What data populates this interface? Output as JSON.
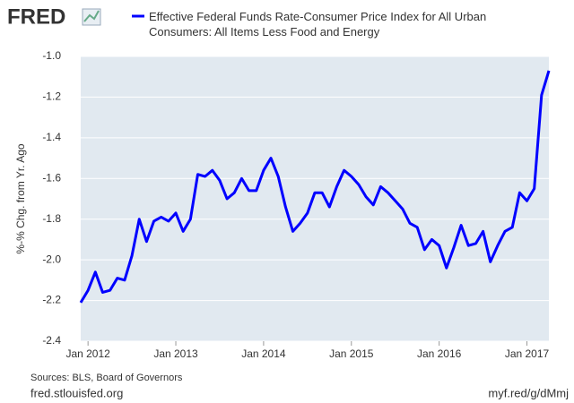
{
  "chart_data": {
    "type": "line",
    "logo": "FRED",
    "y_label": "%-% Chg. from Yr. Ago",
    "source": "Sources: BLS, Board of Governors",
    "footer_left": "fred.stlouisfed.org",
    "footer_right": "myf.red/g/dMmj",
    "x": [
      "2011-12",
      "2012-01",
      "2012-02",
      "2012-03",
      "2012-04",
      "2012-05",
      "2012-06",
      "2012-07",
      "2012-08",
      "2012-09",
      "2012-10",
      "2012-11",
      "2012-12",
      "2013-01",
      "2013-02",
      "2013-03",
      "2013-04",
      "2013-05",
      "2013-06",
      "2013-07",
      "2013-08",
      "2013-09",
      "2013-10",
      "2013-11",
      "2013-12",
      "2014-01",
      "2014-02",
      "2014-03",
      "2014-04",
      "2014-05",
      "2014-06",
      "2014-07",
      "2014-08",
      "2014-09",
      "2014-10",
      "2014-11",
      "2014-12",
      "2015-01",
      "2015-02",
      "2015-03",
      "2015-04",
      "2015-05",
      "2015-06",
      "2015-07",
      "2015-08",
      "2015-09",
      "2015-10",
      "2015-11",
      "2015-12",
      "2016-01",
      "2016-02",
      "2016-03",
      "2016-04",
      "2016-05",
      "2016-06",
      "2016-07",
      "2016-08",
      "2016-09",
      "2016-10",
      "2016-11",
      "2016-12",
      "2017-01",
      "2017-02",
      "2017-03",
      "2017-04"
    ],
    "series": [
      {
        "name": "Effective Federal Funds Rate-Consumer Price Index for All Urban Consumers: All Items Less Food and Energy",
        "color": "#0000ff",
        "values": [
          -2.21,
          -2.15,
          -2.06,
          -2.16,
          -2.15,
          -2.09,
          -2.1,
          -1.98,
          -1.8,
          -1.91,
          -1.81,
          -1.79,
          -1.81,
          -1.77,
          -1.86,
          -1.8,
          -1.58,
          -1.59,
          -1.56,
          -1.61,
          -1.7,
          -1.67,
          -1.6,
          -1.66,
          -1.66,
          -1.56,
          -1.5,
          -1.59,
          -1.74,
          -1.86,
          -1.82,
          -1.77,
          -1.67,
          -1.67,
          -1.74,
          -1.64,
          -1.56,
          -1.59,
          -1.63,
          -1.69,
          -1.73,
          -1.64,
          -1.67,
          -1.71,
          -1.75,
          -1.82,
          -1.84,
          -1.95,
          -1.9,
          -1.93,
          -2.04,
          -1.94,
          -1.83,
          -1.93,
          -1.92,
          -1.86,
          -2.01,
          -1.93,
          -1.86,
          -1.84,
          -1.67,
          -1.71,
          -1.65,
          -1.19,
          -1.07
        ]
      }
    ],
    "xlim": [
      "2011-12",
      "2017-04"
    ],
    "xticks": [
      {
        "value": "2012-01",
        "label": "Jan 2012"
      },
      {
        "value": "2013-01",
        "label": "Jan 2013"
      },
      {
        "value": "2014-01",
        "label": "Jan 2014"
      },
      {
        "value": "2015-01",
        "label": "Jan 2015"
      },
      {
        "value": "2016-01",
        "label": "Jan 2016"
      },
      {
        "value": "2017-01",
        "label": "Jan 2017"
      }
    ],
    "ylim": [
      -2.4,
      -1.0
    ],
    "yticks": [
      {
        "value": -1.0,
        "label": "-1.0"
      },
      -1.2,
      -1.4,
      -1.6,
      -1.8,
      {
        "value": -2.0,
        "label": "-2.0"
      },
      -2.2,
      -2.4
    ],
    "grid": true
  }
}
